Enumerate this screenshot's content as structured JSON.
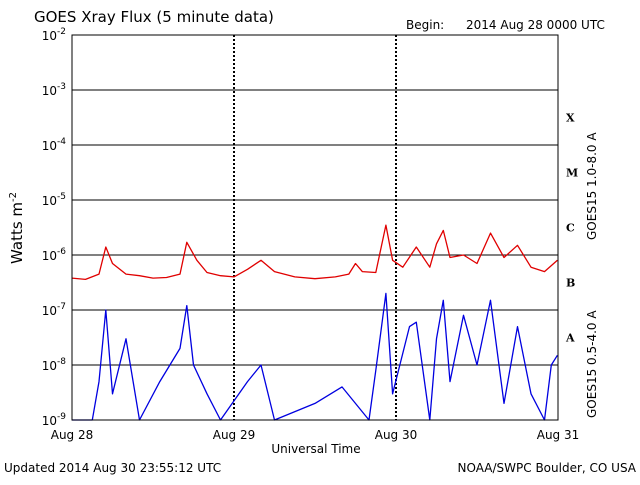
{
  "header": {
    "title": "GOES Xray Flux (5 minute data)",
    "begin_label": "Begin:",
    "begin_value": "2014 Aug 28 0000 UTC"
  },
  "footer": {
    "updated": "Updated 2014 Aug 30 23:55:12 UTC",
    "credit": "NOAA/SWPC Boulder, CO USA"
  },
  "colors": {
    "long_channel": "#e00000",
    "short_channel": "#0000e0",
    "grid": "#000000"
  },
  "chart_data": {
    "type": "line",
    "title": "GOES Xray Flux (5 minute data)",
    "xlabel": "Universal Time",
    "ylabel_base": "Watts m",
    "ylabel_exp": "-2",
    "y_scale": "log",
    "ylim": [
      1e-09,
      0.01
    ],
    "xlim": [
      "2014-08-28T00:00Z",
      "2014-08-31T00:00Z"
    ],
    "x_ticks": [
      "Aug 28",
      "Aug 29",
      "Aug 30",
      "Aug 31"
    ],
    "y_ticks": [
      {
        "base": "10",
        "exp": "-2",
        "value": 0.01
      },
      {
        "base": "10",
        "exp": "-3",
        "value": 0.001
      },
      {
        "base": "10",
        "exp": "-4",
        "value": 0.0001
      },
      {
        "base": "10",
        "exp": "-5",
        "value": 1e-05
      },
      {
        "base": "10",
        "exp": "-6",
        "value": 1e-06
      },
      {
        "base": "10",
        "exp": "-7",
        "value": 1e-07
      },
      {
        "base": "10",
        "exp": "-8",
        "value": 1e-08
      },
      {
        "base": "10",
        "exp": "-9",
        "value": 1e-09
      }
    ],
    "flare_classes": [
      {
        "label": "X",
        "value": 0.0001
      },
      {
        "label": "M",
        "value": 1e-05
      },
      {
        "label": "C",
        "value": 1e-06
      },
      {
        "label": "B",
        "value": 1e-07
      },
      {
        "label": "A",
        "value": 1e-08
      }
    ],
    "series": [
      {
        "name": "GOES15 1.0-8.0 A",
        "points": [
          [
            "2014-08-28T00:00Z",
            3.8e-07
          ],
          [
            "2014-08-28T02:00Z",
            3.6e-07
          ],
          [
            "2014-08-28T04:00Z",
            4.5e-07
          ],
          [
            "2014-08-28T05:00Z",
            1.4e-06
          ],
          [
            "2014-08-28T06:00Z",
            7e-07
          ],
          [
            "2014-08-28T08:00Z",
            4.5e-07
          ],
          [
            "2014-08-28T10:00Z",
            4.2e-07
          ],
          [
            "2014-08-28T12:00Z",
            3.8e-07
          ],
          [
            "2014-08-28T14:00Z",
            3.9e-07
          ],
          [
            "2014-08-28T16:00Z",
            4.5e-07
          ],
          [
            "2014-08-28T17:00Z",
            1.7e-06
          ],
          [
            "2014-08-28T18:30Z",
            8e-07
          ],
          [
            "2014-08-28T20:00Z",
            4.8e-07
          ],
          [
            "2014-08-28T22:00Z",
            4.2e-07
          ],
          [
            "2014-08-29T00:00Z",
            4e-07
          ],
          [
            "2014-08-29T02:00Z",
            5.5e-07
          ],
          [
            "2014-08-29T04:00Z",
            8e-07
          ],
          [
            "2014-08-29T06:00Z",
            5e-07
          ],
          [
            "2014-08-29T09:00Z",
            4e-07
          ],
          [
            "2014-08-29T12:00Z",
            3.7e-07
          ],
          [
            "2014-08-29T15:00Z",
            4e-07
          ],
          [
            "2014-08-29T17:00Z",
            4.5e-07
          ],
          [
            "2014-08-29T18:00Z",
            7e-07
          ],
          [
            "2014-08-29T19:00Z",
            5e-07
          ],
          [
            "2014-08-29T21:00Z",
            4.8e-07
          ],
          [
            "2014-08-29T22:30Z",
            3.5e-06
          ],
          [
            "2014-08-29T23:30Z",
            8e-07
          ],
          [
            "2014-08-30T01:00Z",
            6e-07
          ],
          [
            "2014-08-30T03:00Z",
            1.4e-06
          ],
          [
            "2014-08-30T05:00Z",
            6e-07
          ],
          [
            "2014-08-30T06:00Z",
            1.6e-06
          ],
          [
            "2014-08-30T07:00Z",
            2.8e-06
          ],
          [
            "2014-08-30T08:00Z",
            9e-07
          ],
          [
            "2014-08-30T10:00Z",
            1e-06
          ],
          [
            "2014-08-30T12:00Z",
            7e-07
          ],
          [
            "2014-08-30T14:00Z",
            2.5e-06
          ],
          [
            "2014-08-30T16:00Z",
            9e-07
          ],
          [
            "2014-08-30T18:00Z",
            1.5e-06
          ],
          [
            "2014-08-30T20:00Z",
            6e-07
          ],
          [
            "2014-08-30T22:00Z",
            5e-07
          ],
          [
            "2014-08-30T23:55Z",
            8e-07
          ]
        ]
      },
      {
        "name": "GOES15 0.5-4.0 A",
        "points": [
          [
            "2014-08-28T00:00Z",
            1e-09
          ],
          [
            "2014-08-28T03:00Z",
            1e-09
          ],
          [
            "2014-08-28T04:00Z",
            5e-09
          ],
          [
            "2014-08-28T05:00Z",
            1e-07
          ],
          [
            "2014-08-28T06:00Z",
            3e-09
          ],
          [
            "2014-08-28T08:00Z",
            3e-08
          ],
          [
            "2014-08-28T10:00Z",
            1e-09
          ],
          [
            "2014-08-28T13:00Z",
            5e-09
          ],
          [
            "2014-08-28T16:00Z",
            2e-08
          ],
          [
            "2014-08-28T17:00Z",
            1.2e-07
          ],
          [
            "2014-08-28T18:00Z",
            1e-08
          ],
          [
            "2014-08-28T20:00Z",
            3e-09
          ],
          [
            "2014-08-28T22:00Z",
            1e-09
          ],
          [
            "2014-08-29T02:00Z",
            5e-09
          ],
          [
            "2014-08-29T04:00Z",
            1e-08
          ],
          [
            "2014-08-29T06:00Z",
            1e-09
          ],
          [
            "2014-08-29T12:00Z",
            2e-09
          ],
          [
            "2014-08-29T16:00Z",
            4e-09
          ],
          [
            "2014-08-29T20:00Z",
            1e-09
          ],
          [
            "2014-08-29T21:00Z",
            8e-09
          ],
          [
            "2014-08-29T22:30Z",
            2e-07
          ],
          [
            "2014-08-29T23:30Z",
            3e-09
          ],
          [
            "2014-08-30T02:00Z",
            5e-08
          ],
          [
            "2014-08-30T03:00Z",
            6e-08
          ],
          [
            "2014-08-30T05:00Z",
            1e-09
          ],
          [
            "2014-08-30T06:00Z",
            3e-08
          ],
          [
            "2014-08-30T07:00Z",
            1.5e-07
          ],
          [
            "2014-08-30T08:00Z",
            5e-09
          ],
          [
            "2014-08-30T10:00Z",
            8e-08
          ],
          [
            "2014-08-30T12:00Z",
            1e-08
          ],
          [
            "2014-08-30T14:00Z",
            1.5e-07
          ],
          [
            "2014-08-30T16:00Z",
            2e-09
          ],
          [
            "2014-08-30T18:00Z",
            5e-08
          ],
          [
            "2014-08-30T20:00Z",
            3e-09
          ],
          [
            "2014-08-30T22:00Z",
            1e-09
          ],
          [
            "2014-08-30T23:00Z",
            1e-08
          ],
          [
            "2014-08-30T23:55Z",
            1.5e-08
          ]
        ]
      }
    ]
  }
}
